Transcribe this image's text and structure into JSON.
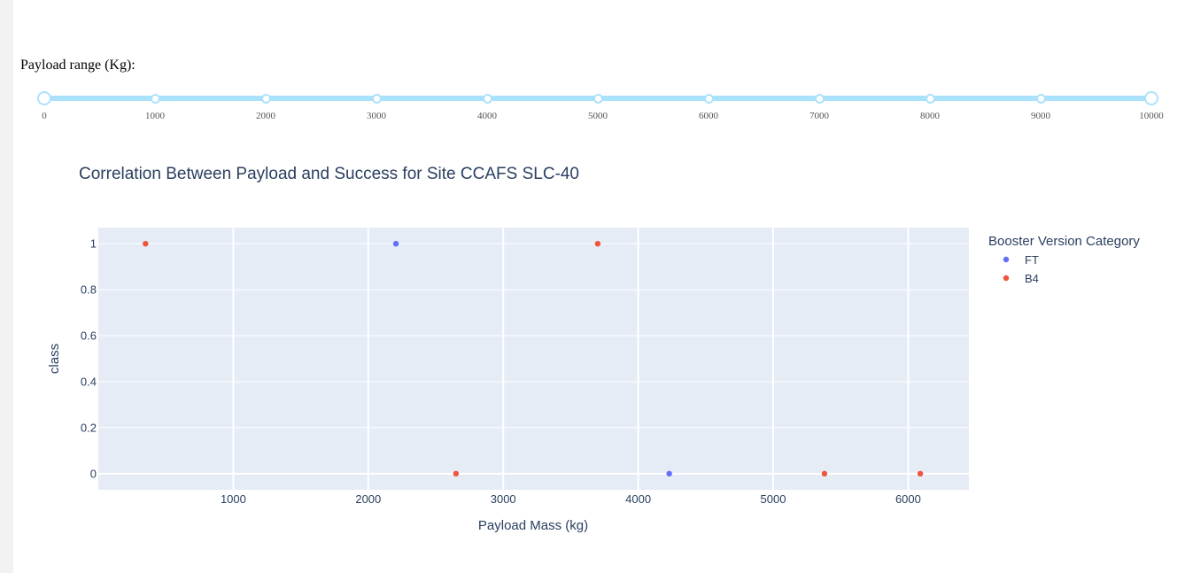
{
  "slider": {
    "label": "Payload range (Kg):",
    "min": 0,
    "max": 10000,
    "selected": [
      0,
      10000
    ],
    "marks": [
      "0",
      "1000",
      "2000",
      "3000",
      "4000",
      "5000",
      "6000",
      "7000",
      "8000",
      "9000",
      "10000"
    ],
    "color": "#abe2fb"
  },
  "chart_data": {
    "type": "scatter",
    "title": "Correlation Between Payload and Success for Site CCAFS SLC-40",
    "xlabel": "Payload Mass (kg)",
    "ylabel": "class",
    "xlim": [
      0,
      6450
    ],
    "ylim": [
      -0.07,
      1.07
    ],
    "xticks": [
      1000,
      2000,
      3000,
      4000,
      5000,
      6000
    ],
    "yticks": [
      0,
      0.2,
      0.4,
      0.6,
      0.8,
      1
    ],
    "xtick_labels": [
      "1000",
      "2000",
      "3000",
      "4000",
      "5000",
      "6000"
    ],
    "ytick_labels": [
      "0",
      "0.2",
      "0.4",
      "0.6",
      "0.8",
      "1"
    ],
    "grid": true,
    "legend": {
      "title": "Booster Version Category",
      "position": "right"
    },
    "plot_background": "#e5ecf6",
    "series": [
      {
        "name": "FT",
        "color": "#636efa",
        "points": [
          [
            2205,
            1
          ],
          [
            4230,
            0
          ]
        ]
      },
      {
        "name": "B4",
        "color": "#ef553b",
        "points": [
          [
            350,
            1
          ],
          [
            2650,
            0
          ],
          [
            3700,
            1
          ],
          [
            5380,
            0
          ],
          [
            6090,
            0
          ]
        ]
      }
    ]
  }
}
